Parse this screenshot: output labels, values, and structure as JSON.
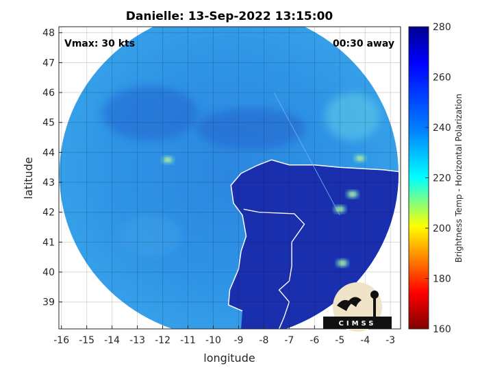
{
  "title": "Danielle: 13-Sep-2022 13:15:00",
  "annotations": {
    "vmax": "Vmax: 30 kts",
    "time_away": "00:30 away"
  },
  "xaxis": {
    "label": "longitude",
    "range": [
      -16.1,
      -2.6
    ],
    "ticks": [
      -16,
      -15,
      -14,
      -13,
      -12,
      -11,
      -10,
      -9,
      -8,
      -7,
      -6,
      -5,
      -4,
      -3
    ]
  },
  "yaxis": {
    "label": "latitude",
    "range": [
      38.1,
      48.2
    ],
    "ticks": [
      39,
      40,
      41,
      42,
      43,
      44,
      45,
      46,
      47,
      48
    ]
  },
  "colorbar": {
    "label": "Brightness Temp - Horizontal Polarization",
    "range": [
      160,
      280
    ],
    "ticks": [
      160,
      180,
      200,
      220,
      240,
      260,
      280
    ],
    "colormap": "jet"
  },
  "logo": {
    "text": "CIMSS"
  },
  "grid": true,
  "swath": {
    "center_lon": -9.38,
    "center_lat": 43.28,
    "radius_deg": 6.7,
    "ocean_color": "#2e8ce0",
    "land_color": "#1a2fae"
  },
  "warm_spots": [
    {
      "lon": -11.8,
      "lat": 43.75
    },
    {
      "lon": -4.2,
      "lat": 43.8
    },
    {
      "lon": -5.0,
      "lat": 42.1
    },
    {
      "lon": -4.9,
      "lat": 40.3
    },
    {
      "lon": -4.5,
      "lat": 42.6
    }
  ]
}
